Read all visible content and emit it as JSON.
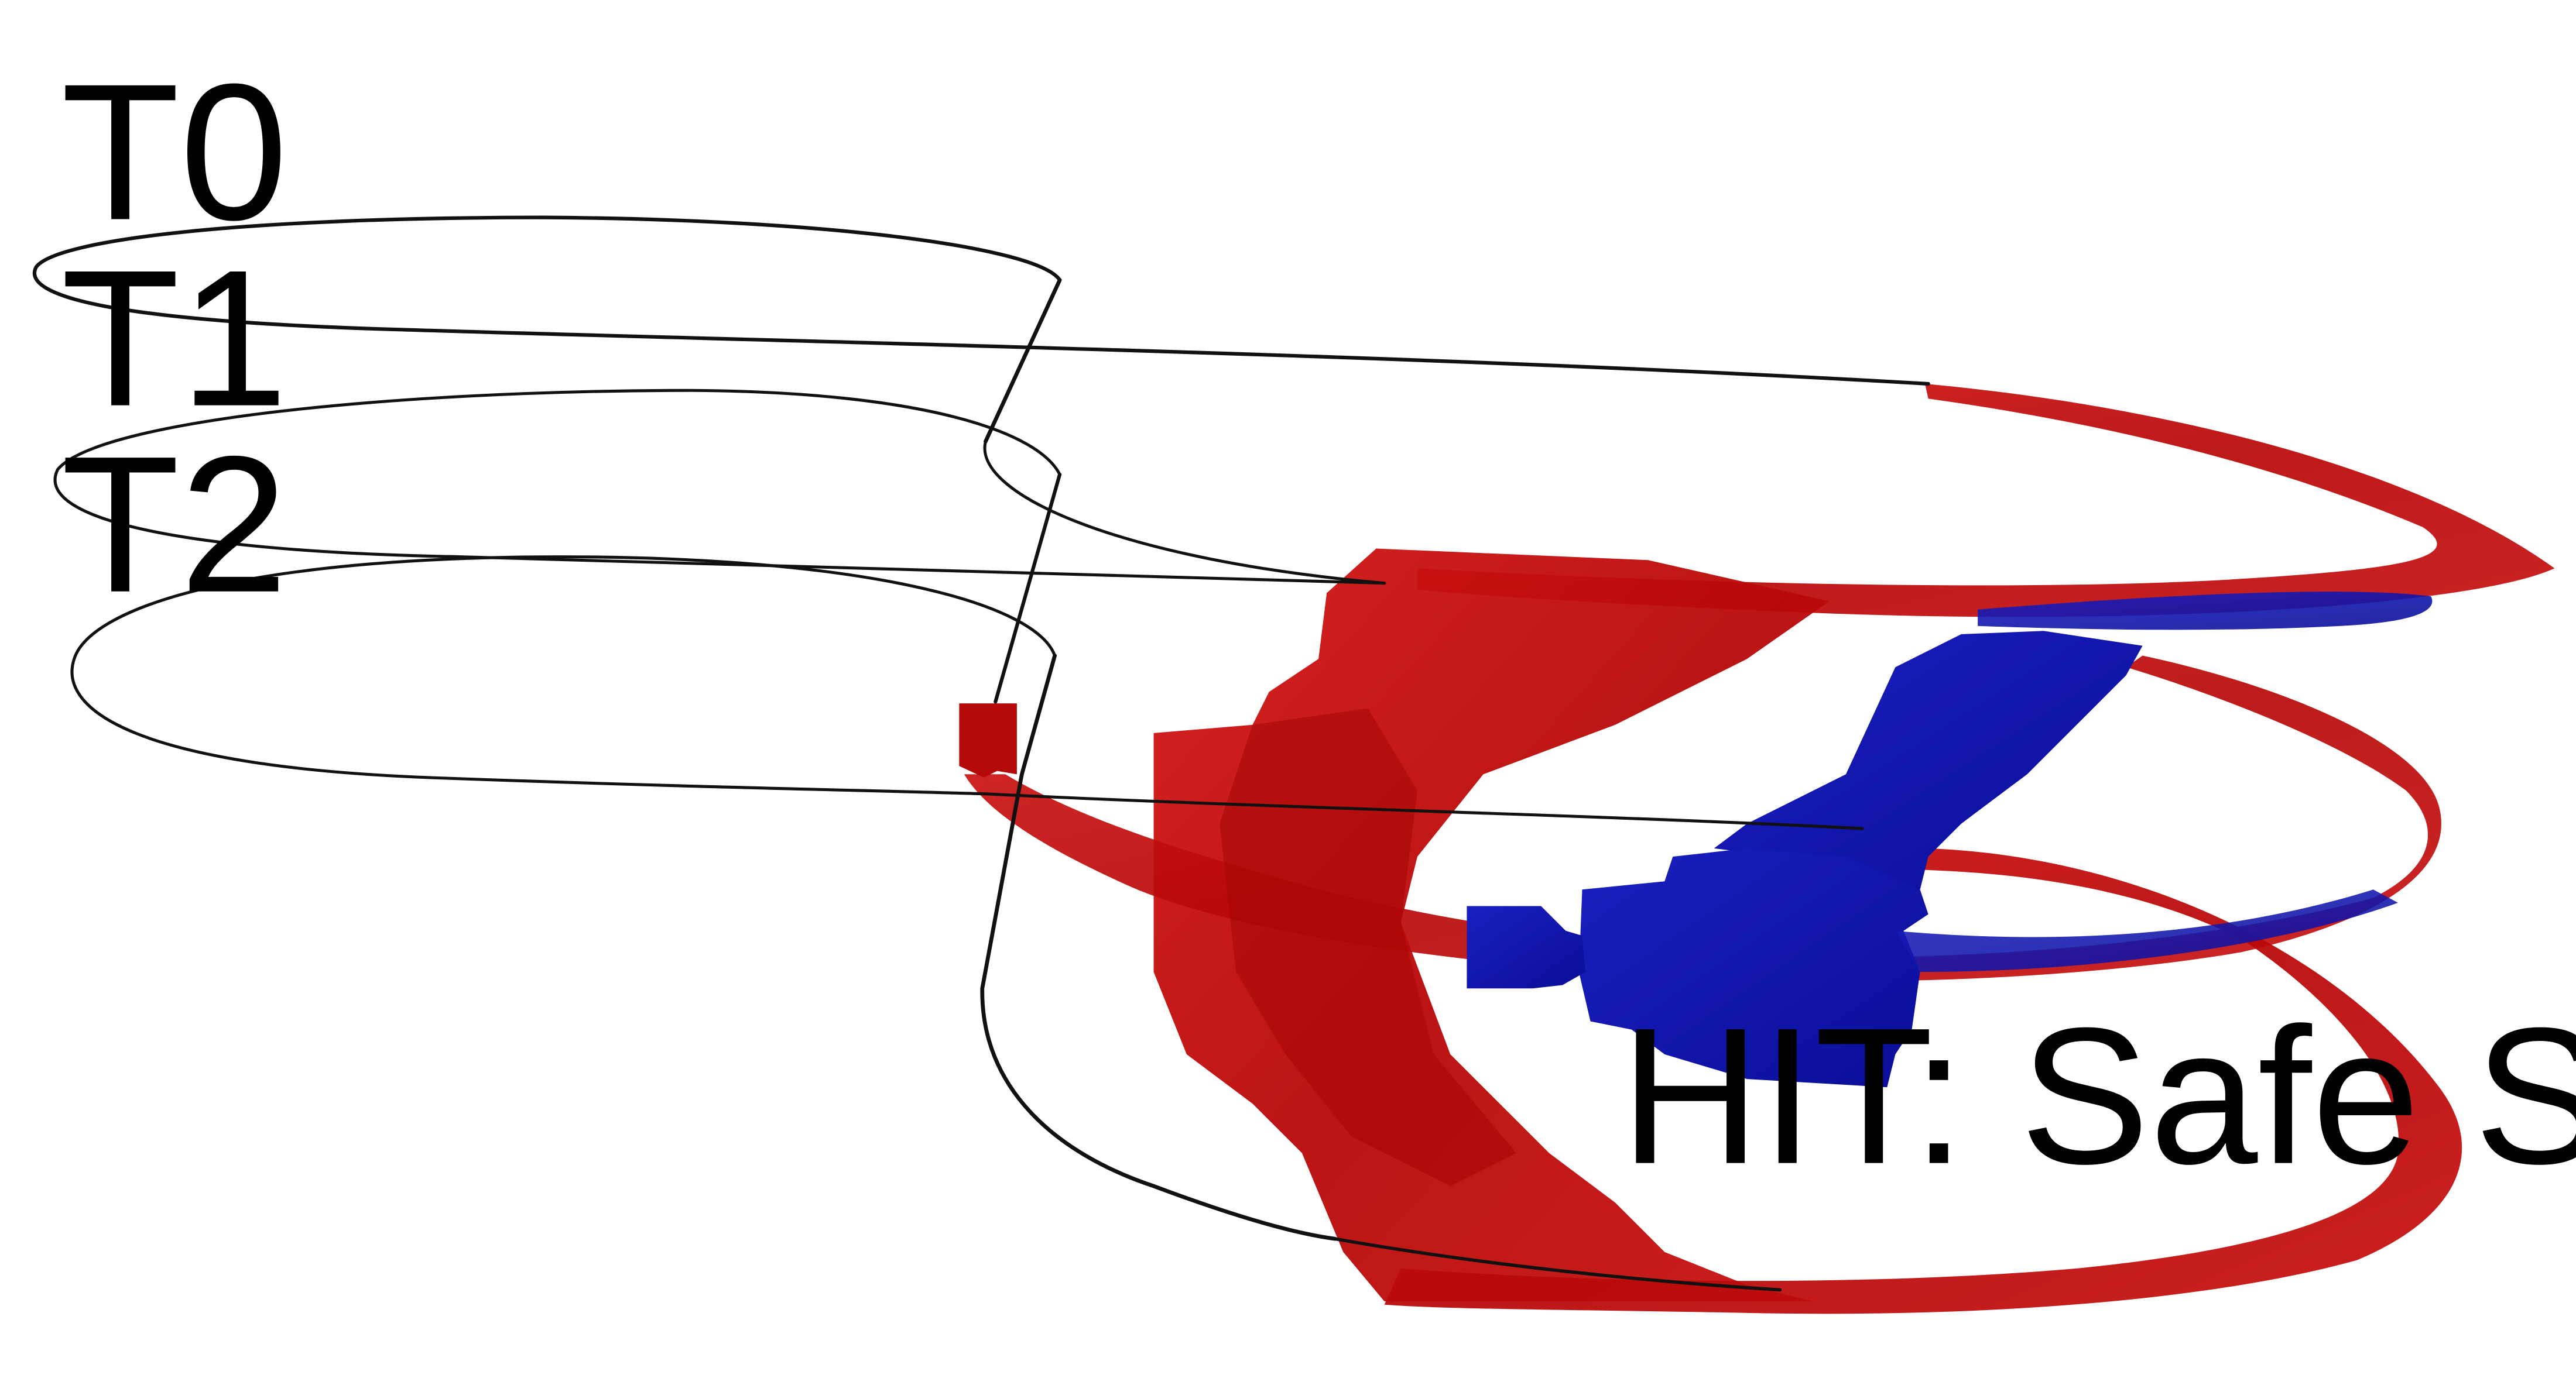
{
  "labels": {
    "t0": "T0",
    "t1": "T1",
    "t2": "T2",
    "hit": "HIT: Safe Separation"
  },
  "colors": {
    "background": "#ffffff",
    "trajectory": "#111111",
    "red_region": "#c20e0e",
    "blue_region": "#0f13a8"
  }
}
